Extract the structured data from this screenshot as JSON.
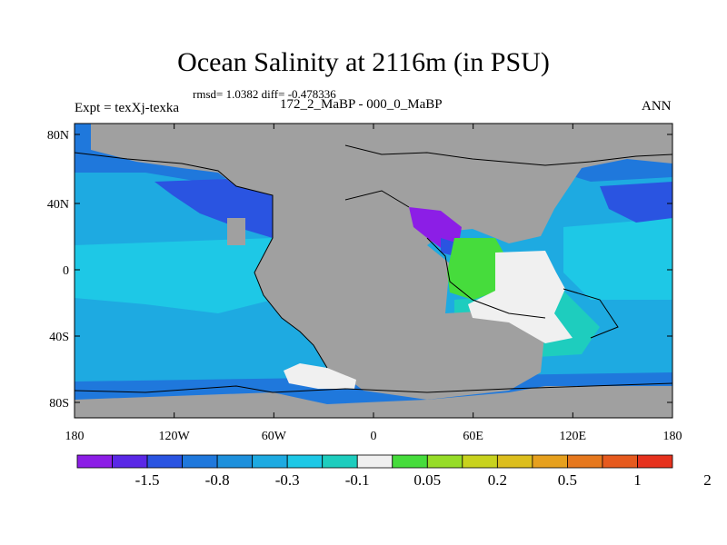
{
  "title": "Ocean Salinity at 2116m (in PSU)",
  "stats": "rmsd= 1.0382 diff= -0.478336",
  "expt": "Expt = texXj-texka",
  "comparison": "172_2_MaBP - 000_0_MaBP",
  "season": "ANN",
  "lat_labels": [
    "80N",
    "40N",
    "0",
    "40S",
    "80S"
  ],
  "lon_labels": [
    "180",
    "120W",
    "60W",
    "0",
    "60E",
    "120E",
    "180"
  ],
  "colorbar": {
    "labels": [
      "-1.5",
      "-0.8",
      "-0.3",
      "-0.1",
      "0.05",
      "0.2",
      "0.5",
      "1",
      "2"
    ],
    "colors": [
      "#8c1ee6",
      "#5a28e6",
      "#2a54e1",
      "#1f78dc",
      "#1e90dc",
      "#1eaae1",
      "#1ec8e6",
      "#1ecdbe",
      "#f0f0f0",
      "#46dc3c",
      "#96dc28",
      "#c8d21e",
      "#dcbe1e",
      "#e6a01e",
      "#e6781e",
      "#e65a1e",
      "#e6321e"
    ]
  },
  "colors": {
    "land": "#a0a0a0",
    "ocean_base": "#1eaae1",
    "arctic": "#1f78dc",
    "north_atlantic_deep": "#2a54e1",
    "tropical_band": "#1ec8e6",
    "coastal_teal": "#1ecdbe",
    "neutral": "#f0f0f0",
    "mediterranean": "#8c1ee6",
    "red_sea": "#46dc3c"
  }
}
